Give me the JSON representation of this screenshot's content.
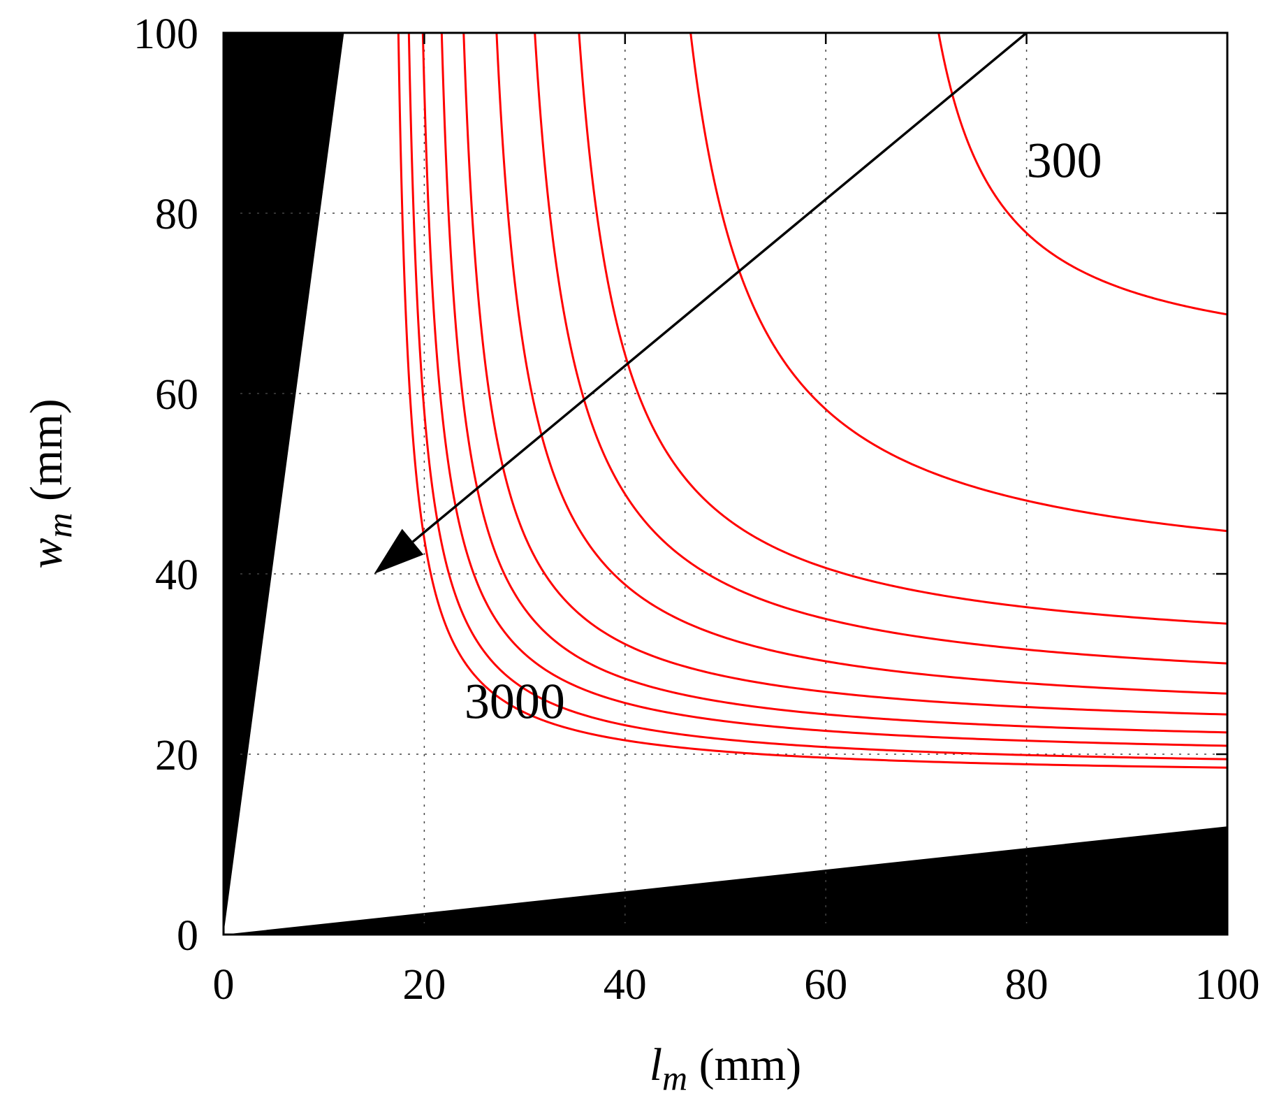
{
  "chart_data": {
    "type": "contour",
    "title": "",
    "xlabel": {
      "var": "l",
      "sub": "m",
      "unit": " (mm)"
    },
    "ylabel": {
      "var": "w",
      "sub": "m",
      "unit": " (mm)"
    },
    "xlim": [
      0,
      100
    ],
    "ylim": [
      0,
      100
    ],
    "xticks": [
      "0",
      "20",
      "40",
      "60",
      "80",
      "100"
    ],
    "yticks": [
      "0",
      "20",
      "40",
      "60",
      "80",
      "100"
    ],
    "xtick_values": [
      0,
      20,
      40,
      60,
      80,
      100
    ],
    "ytick_values": [
      0,
      20,
      40,
      60,
      80,
      100
    ],
    "grid": true,
    "grid_style": "dotted",
    "contour_color": "#ff0000",
    "infeasible_color": "#000000",
    "infeasible_regions": [
      {
        "name": "upper-left",
        "vertices": [
          [
            0,
            0
          ],
          [
            0,
            100
          ],
          [
            12,
            100
          ]
        ]
      },
      {
        "name": "lower-right",
        "vertices": [
          [
            0,
            0
          ],
          [
            100,
            0
          ],
          [
            100,
            12
          ]
        ]
      }
    ],
    "contours": [
      {
        "a": 65,
        "b": 62,
        "k": 237
      },
      {
        "a": 40,
        "b": 38,
        "k": 405
      },
      {
        "a": 31,
        "b": 30,
        "k": 309
      },
      {
        "a": 27,
        "b": 26,
        "k": 297
      },
      {
        "a": 24,
        "b": 23.5,
        "k": 245
      },
      {
        "a": 21.5,
        "b": 22,
        "k": 189
      },
      {
        "a": 19.7,
        "b": 20.4,
        "k": 162
      },
      {
        "a": 18.1,
        "b": 19.2,
        "k": 142
      },
      {
        "a": 17,
        "b": 18,
        "k": 120
      },
      {
        "a": 16.2,
        "b": 17.3,
        "k": 101
      }
    ],
    "annotations": [
      {
        "text": "300",
        "x": 80,
        "y": 84
      },
      {
        "text": "3000",
        "x": 24,
        "y": 24
      }
    ],
    "arrow": {
      "from": [
        80,
        100
      ],
      "to": [
        15,
        40
      ]
    }
  }
}
